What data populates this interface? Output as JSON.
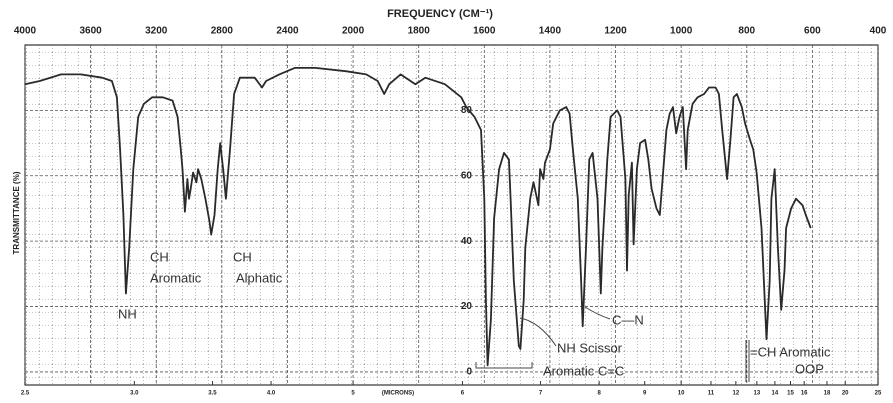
{
  "chart_data": {
    "type": "line",
    "title": "FREQUENCY (CM⁻¹)",
    "ylabel": "TRANSMITTANCE (%)",
    "x2label": "(MICRONS)",
    "color": "#2a2a2a",
    "grid": true,
    "xlim": [
      4000,
      400
    ],
    "xticks": [
      4000,
      3600,
      3200,
      2800,
      2400,
      2000,
      1800,
      1600,
      1400,
      1200,
      1000,
      800,
      600,
      400
    ],
    "x2ticks": [
      2.5,
      {
        "value": 3,
        "label": "3.0"
      },
      3.5,
      {
        "value": 4,
        "label": "4.0"
      },
      5,
      6,
      7,
      8,
      9,
      10,
      11,
      12,
      13,
      14,
      15,
      16,
      18,
      20,
      25
    ],
    "ylim": [
      -4,
      100
    ],
    "yticks": [
      0,
      20,
      40,
      60,
      80
    ],
    "x": [
      4000,
      3910,
      3780,
      3660,
      3530,
      3470,
      3440,
      3420,
      3400,
      3385,
      3365,
      3340,
      3310,
      3275,
      3225,
      3160,
      3100,
      3070,
      3050,
      3040,
      3025,
      3010,
      3000,
      2990,
      2975,
      2955,
      2945,
      2925,
      2900,
      2875,
      2865,
      2845,
      2825,
      2810,
      2790,
      2775,
      2750,
      2725,
      2690,
      2600,
      2555,
      2530,
      2450,
      2355,
      2230,
      2045,
      1960,
      1925,
      1905,
      1890,
      1855,
      1810,
      1780,
      1720,
      1670,
      1655,
      1630,
      1610,
      1600,
      1595,
      1590,
      1580,
      1570,
      1555,
      1540,
      1525,
      1520,
      1510,
      1495,
      1490,
      1480,
      1475,
      1460,
      1450,
      1435,
      1430,
      1420,
      1415,
      1400,
      1390,
      1370,
      1350,
      1340,
      1330,
      1315,
      1305,
      1300,
      1290,
      1280,
      1270,
      1255,
      1245,
      1240,
      1225,
      1215,
      1195,
      1185,
      1170,
      1165,
      1160,
      1150,
      1145,
      1135,
      1125,
      1110,
      1100,
      1090,
      1075,
      1065,
      1055,
      1045,
      1035,
      1025,
      1015,
      1005,
      995,
      985,
      980,
      965,
      950,
      930,
      915,
      895,
      885,
      875,
      860,
      850,
      840,
      830,
      815,
      805,
      790,
      780,
      770,
      755,
      740,
      730,
      725,
      715,
      705,
      695,
      685,
      680,
      665,
      650,
      630,
      620,
      605
    ],
    "values": [
      88,
      89,
      91,
      91,
      90,
      89,
      84,
      68,
      48,
      24,
      38,
      62,
      78,
      82,
      84,
      84,
      83,
      78,
      68,
      62,
      49,
      59,
      53,
      56,
      61,
      58,
      62,
      59,
      53,
      46,
      42,
      48,
      62,
      70,
      61,
      53,
      68,
      85,
      90,
      90,
      87,
      89,
      91,
      93,
      93,
      92,
      91,
      89,
      85,
      88,
      91,
      88,
      90,
      88,
      84,
      81,
      78,
      74,
      53,
      22,
      2,
      16,
      47,
      62,
      67,
      65,
      53,
      28,
      8,
      7,
      22,
      38,
      53,
      58,
      51,
      62,
      59,
      64,
      68,
      76,
      80,
      81,
      79,
      68,
      53,
      28,
      14,
      38,
      65,
      67,
      53,
      24,
      38,
      65,
      78,
      80,
      78,
      59,
      31,
      54,
      64,
      39,
      62,
      70,
      71,
      65,
      56,
      50,
      48,
      61,
      74,
      79,
      81,
      73,
      78,
      81,
      62,
      74,
      82,
      84,
      85,
      87,
      87,
      85,
      74,
      59,
      71,
      84,
      85,
      81,
      76,
      71,
      68,
      61,
      44,
      10,
      28,
      53,
      62,
      38,
      19,
      31,
      44,
      50,
      53,
      51,
      48,
      44
    ],
    "annotations": [
      "NH",
      "CH",
      "Aromatic",
      "CH",
      "Alphatic",
      "C—N",
      "NH Scissor",
      "Aromatic C=C",
      "=CH Aromatic",
      "OOP"
    ]
  }
}
